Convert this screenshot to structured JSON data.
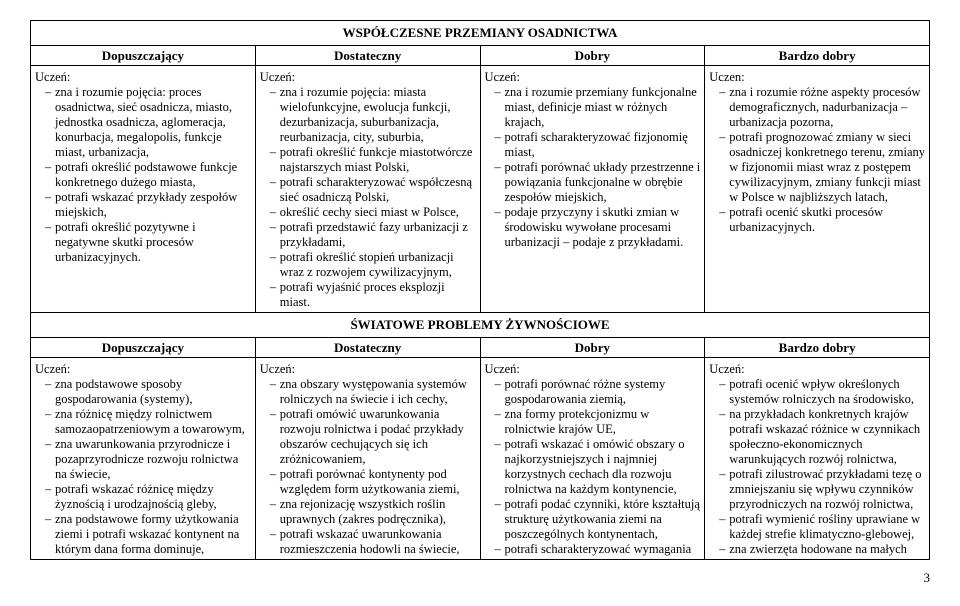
{
  "page_number": "3",
  "sections": [
    {
      "title": "WSPÓŁCZESNE PRZEMIANY OSADNICTWA",
      "headers": [
        "Dopuszczający",
        "Dostateczny",
        "Dobry",
        "Bardzo dobry"
      ],
      "student_labels": [
        "Uczeń:",
        "Uczeń:",
        "Uczeń:",
        "Uczen:"
      ],
      "cells": [
        [
          "zna i rozumie pojęcia: proces osadnictwa, sieć osadnicza, miasto, jednostka osadnicza, aglomeracja, konurbacja, megalopolis, funkcje miast, urbanizacja,",
          "potrafi określić podstawowe funkcje konkretnego dużego miasta,",
          "potrafi wskazać przykłady zespołów miejskich,",
          "potrafi określić pozytywne i negatywne skutki procesów urbanizacyjnych."
        ],
        [
          "zna i rozumie pojęcia: miasta wielofunkcyjne, ewolucja funkcji, dezurbanizacja, suburbanizacja, reurbanizacja, city, suburbia,",
          "potrafi określić funkcje miastotwórcze najstarszych miast Polski,",
          "potrafi scharakteryzować współczesną sieć osadniczą Polski,",
          "określić cechy sieci miast w Polsce,",
          "potrafi przedstawić fazy urbanizacji z przykładami,",
          "potrafi określić stopień urbanizacji wraz z rozwojem cywilizacyjnym,",
          "potrafi wyjaśnić proces eksplozji miast."
        ],
        [
          "zna i rozumie przemiany funkcjonalne miast, definicje miast w różnych krajach,",
          "potrafi scharakteryzować fizjonomię miast,",
          "potrafi porównać układy przestrzenne i powiązania funkcjonalne w obrębie zespołów miejskich,",
          "podaje przyczyny i skutki zmian w środowisku wywołane procesami urbanizacji – podaje z przykładami."
        ],
        [
          "zna i rozumie różne aspekty procesów demograficznych, nadurbanizacja – urbanizacja pozorna,",
          "potrafi prognozować zmiany w sieci osadniczej konkretnego terenu, zmiany w fizjonomii miast wraz z postępem cywilizacyjnym, zmiany funkcji miast w Polsce w najbliższych latach,",
          "potrafi ocenić skutki procesów urbanizacyjnych."
        ]
      ]
    },
    {
      "title": "ŚWIATOWE PROBLEMY ŻYWNOŚCIOWE",
      "headers": [
        "Dopuszczający",
        "Dostateczny",
        "Dobry",
        "Bardzo dobry"
      ],
      "student_labels": [
        "Uczeń:",
        "Uczeń:",
        "Uczeń:",
        "Uczeń:"
      ],
      "cells": [
        [
          "zna podstawowe sposoby gospodarowania (systemy),",
          "zna różnicę między rolnictwem samozaopatrzeniowym a towarowym,",
          "zna uwarunkowania przyrodnicze i pozaprzyrodnicze rozwoju rolnictwa na świecie,",
          "potrafi wskazać różnicę między żyznością i urodzajnością gleby,",
          "zna podstawowe formy użytkowania ziemi i potrafi wskazać kontynent na którym dana forma dominuje,"
        ],
        [
          "zna obszary występowania systemów rolniczych na świecie i ich cechy,",
          "potrafi omówić uwarunkowania rozwoju rolnictwa i podać przykłady obszarów cechujących się ich zróżnicowaniem,",
          "potrafi porównać kontynenty pod względem form użytkowania ziemi,",
          "zna rejonizację wszystkich roślin uprawnych (zakres podręcznika),",
          "potrafi wskazać uwarunkowania rozmieszczenia hodowli na świecie,"
        ],
        [
          "potrafi porównać różne systemy gospodarowania ziemią,",
          "zna formy protekcjonizmu w rolnictwie krajów UE,",
          "potrafi wskazać i omówić obszary o najkorzystniejszych i najmniej korzystnych cechach dla rozwoju rolnictwa na każdym kontynencie,",
          "potrafi podać czynniki, które kształtują strukturę użytkowania ziemi na poszczególnych kontynentach,",
          "potrafi scharakteryzować wymagania"
        ],
        [
          "potrafi ocenić wpływ określonych systemów rolniczych na środowisko,",
          "na przykładach konkretnych krajów potrafi wskazać różnice w czynnikach społeczno-ekonomicznych warunkujących rozwój rolnictwa,",
          "potrafi zilustrować przykładami tezę o zmniejszaniu się wpływu czynników przyrodniczych na rozwój rolnictwa,",
          "potrafi wymienić rośliny uprawiane w każdej strefie klimatyczno-glebowej,",
          "zna zwierzęta hodowane na małych"
        ]
      ]
    }
  ]
}
